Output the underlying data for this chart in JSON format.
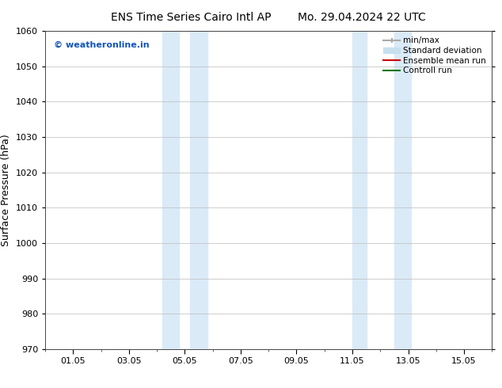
{
  "title_left": "ENS Time Series Cairo Intl AP",
  "title_right": "Mo. 29.04.2024 22 UTC",
  "ylabel": "Surface Pressure (hPa)",
  "ylim": [
    970,
    1060
  ],
  "yticks": [
    970,
    980,
    990,
    1000,
    1010,
    1020,
    1030,
    1040,
    1050,
    1060
  ],
  "xtick_labels": [
    "01.05",
    "03.05",
    "05.05",
    "07.05",
    "09.05",
    "11.05",
    "13.05",
    "15.05"
  ],
  "xtick_positions": [
    1,
    3,
    5,
    7,
    9,
    11,
    13,
    15
  ],
  "xlim": [
    0,
    16
  ],
  "shaded_bands": [
    {
      "x_start": 4.3,
      "x_end": 5.7
    },
    {
      "x_start": 5.7,
      "x_end": 6.0
    },
    {
      "x_start": 10.8,
      "x_end": 12.0
    },
    {
      "x_start": 12.0,
      "x_end": 13.2
    }
  ],
  "shade_color_dark": "#c5ddf0",
  "shade_color_light": "#daeaf7",
  "watermark_text": "© weatheronline.in",
  "watermark_color": "#1155bb",
  "legend_items": [
    {
      "label": "min/max",
      "color": "#aaaaaa"
    },
    {
      "label": "Standard deviation",
      "color": "#c8dff0"
    },
    {
      "label": "Ensemble mean run",
      "color": "#cc0000"
    },
    {
      "label": "Controll run",
      "color": "#007700"
    }
  ],
  "bg_color": "#ffffff",
  "grid_color": "#bbbbbb",
  "spine_color": "#444444",
  "title_fontsize": 10,
  "ylabel_fontsize": 9,
  "tick_fontsize": 8,
  "legend_fontsize": 7.5,
  "watermark_fontsize": 8
}
